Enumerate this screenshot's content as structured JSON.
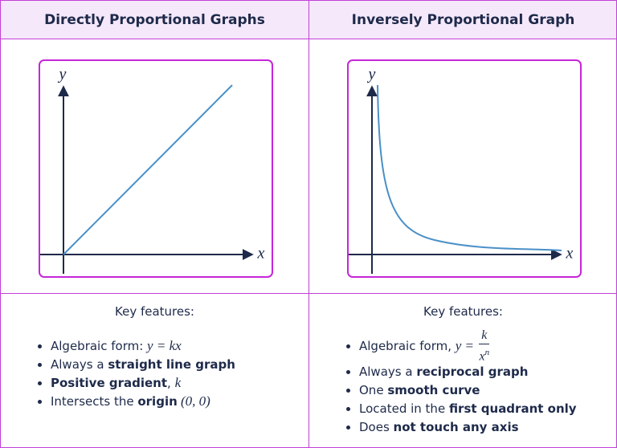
{
  "columns": [
    {
      "title": "Directly Proportional Graphs",
      "graph": {
        "x_label": "x",
        "y_label": "y"
      },
      "features_heading": "Key features:",
      "features": [
        [
          {
            "text": "Algebraic form: "
          },
          {
            "text": "y = kx",
            "style": "math"
          }
        ],
        [
          {
            "text": "Always a "
          },
          {
            "text": "straight line graph",
            "style": "bold"
          }
        ],
        [
          {
            "text": "Positive gradient",
            "style": "bold"
          },
          {
            "text": ", "
          },
          {
            "text": "k",
            "style": "math"
          }
        ],
        [
          {
            "text": "Intersects the "
          },
          {
            "text": "origin",
            "style": "bold"
          },
          {
            "text": " (0, 0)",
            "style": "math"
          }
        ]
      ]
    },
    {
      "title": "Inversely Proportional Graph",
      "graph": {
        "x_label": "x",
        "y_label": "y"
      },
      "features_heading": "Key features:",
      "features": [
        [
          {
            "text": "Algebraic form, "
          },
          {
            "text": "y = ",
            "style": "math"
          },
          {
            "num": "k",
            "den": "x",
            "sup": "n"
          }
        ],
        [
          {
            "text": "Always a "
          },
          {
            "text": "reciprocal graph",
            "style": "bold"
          }
        ],
        [
          {
            "text": "One "
          },
          {
            "text": "smooth curve",
            "style": "bold"
          }
        ],
        [
          {
            "text": "Located in the "
          },
          {
            "text": "first quadrant only",
            "style": "bold"
          }
        ],
        [
          {
            "text": "Does "
          },
          {
            "text": "not touch any axis",
            "style": "bold"
          }
        ]
      ]
    }
  ]
}
